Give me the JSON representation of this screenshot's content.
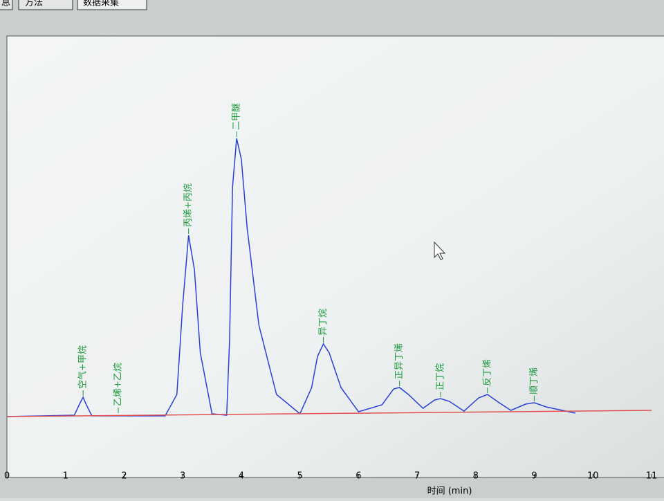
{
  "tabs": [
    "息",
    "方法",
    "数据采集"
  ],
  "chart_data": {
    "type": "line",
    "x_label": "时间 (min)",
    "xlim": [
      0,
      11
    ],
    "xticks": [
      0,
      1,
      2,
      3,
      4,
      5,
      6,
      7,
      8,
      9,
      10,
      11
    ],
    "ylim": [
      0,
      638
    ],
    "series": [
      {
        "color": "#2a3fd6",
        "x": [
          0,
          1.15,
          1.25,
          1.3,
          1.35,
          1.45,
          2.7,
          2.9,
          3.0,
          3.1,
          3.2,
          3.3,
          3.5,
          3.75,
          3.8,
          3.85,
          3.92,
          4.0,
          4.1,
          4.3,
          4.6,
          5.0,
          5.2,
          5.3,
          5.4,
          5.5,
          5.7,
          6.0,
          6.4,
          6.6,
          6.7,
          6.85,
          7.1,
          7.3,
          7.4,
          7.55,
          7.8,
          8.05,
          8.2,
          8.4,
          8.6,
          8.85,
          9.0,
          9.2,
          9.7
        ],
        "values": [
          88,
          90,
          108,
          116,
          106,
          89,
          89,
          120,
          250,
          350,
          300,
          180,
          92,
          90,
          200,
          420,
          490,
          460,
          360,
          220,
          120,
          92,
          130,
          175,
          193,
          180,
          130,
          95,
          105,
          128,
          130,
          120,
          100,
          112,
          114,
          110,
          96,
          115,
          120,
          108,
          97,
          106,
          108,
          102,
          93
        ]
      },
      {
        "color": "#e05050",
        "x": [
          0,
          11
        ],
        "values": [
          88,
          97
        ]
      }
    ],
    "annotations": [
      {
        "text": "空气+甲烷",
        "x": 1.3,
        "y": 116
      },
      {
        "text": "乙烯+乙烷",
        "x": 1.9,
        "y": 91
      },
      {
        "text": "丙烯+丙烷",
        "x": 3.1,
        "y": 350
      },
      {
        "text": "二甲醚",
        "x": 3.92,
        "y": 490
      },
      {
        "text": "异丁烷",
        "x": 5.4,
        "y": 193
      },
      {
        "text": "正异丁烯",
        "x": 6.7,
        "y": 130
      },
      {
        "text": "正丁烷",
        "x": 7.4,
        "y": 114
      },
      {
        "text": "反丁烯",
        "x": 8.2,
        "y": 120
      },
      {
        "text": "顺丁烯",
        "x": 9.0,
        "y": 108
      }
    ]
  }
}
